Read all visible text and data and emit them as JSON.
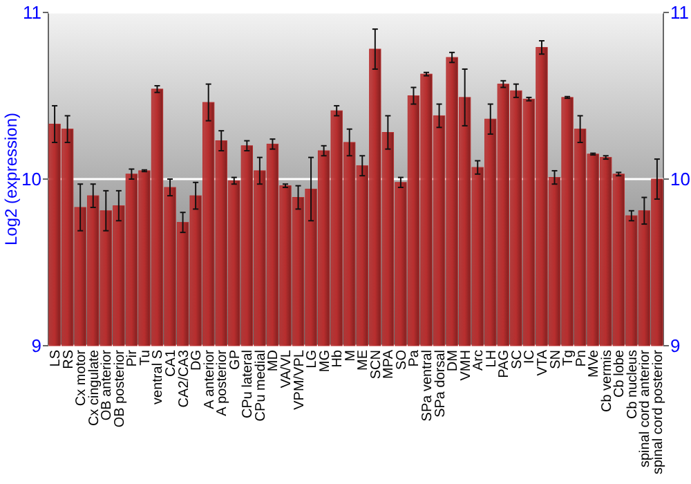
{
  "chart_data": {
    "type": "bar",
    "ylabel": "Log2 (expression)",
    "categories": [
      "LS",
      "RS",
      "Cx motor",
      "Cx cingulate",
      "OB anterior",
      "OB posterior",
      "Pir",
      "Tu",
      "ventral S",
      "CA1",
      "CA2/CA3",
      "DG",
      "A anterior",
      "A posterior",
      "GP",
      "CPu lateral",
      "CPu medial",
      "MD",
      "VA/VL",
      "VPM/VPL",
      "LG",
      "MG",
      "Hb",
      "M",
      "ME",
      "SCN",
      "MPA",
      "SO",
      "Pa",
      "SPa ventral",
      "SPa dorsal",
      "DM",
      "VMH",
      "Arc",
      "LH",
      "PAG",
      "SC",
      "IC",
      "VTA",
      "SN",
      "Tg",
      "Pn",
      "MVe",
      "Cb vermis",
      "Cb lobe",
      "Cb nucleus",
      "spinal cord anterior",
      "spinal cord posterior"
    ],
    "values": [
      10.33,
      10.3,
      9.83,
      9.9,
      9.81,
      9.84,
      10.03,
      10.05,
      10.54,
      9.95,
      9.74,
      9.9,
      10.46,
      10.23,
      9.99,
      10.2,
      10.05,
      10.21,
      9.96,
      9.89,
      9.94,
      10.17,
      10.41,
      10.22,
      10.08,
      10.78,
      10.28,
      9.98,
      10.5,
      10.63,
      10.38,
      10.73,
      10.49,
      10.07,
      10.36,
      10.57,
      10.53,
      10.48,
      10.79,
      10.01,
      10.49,
      10.3,
      10.15,
      10.13,
      10.03,
      9.78,
      9.81,
      10.0
    ],
    "errors": [
      0.11,
      0.08,
      0.14,
      0.07,
      0.12,
      0.09,
      0.03,
      0.005,
      0.02,
      0.05,
      0.06,
      0.08,
      0.11,
      0.06,
      0.02,
      0.03,
      0.08,
      0.03,
      0.01,
      0.07,
      0.19,
      0.03,
      0.03,
      0.08,
      0.06,
      0.12,
      0.1,
      0.03,
      0.05,
      0.01,
      0.07,
      0.03,
      0.17,
      0.04,
      0.09,
      0.02,
      0.04,
      0.01,
      0.04,
      0.04,
      0.005,
      0.08,
      0.005,
      0.01,
      0.01,
      0.03,
      0.08,
      0.12
    ],
    "color": "#b82e2e",
    "ylim": [
      9,
      11
    ],
    "yticks": [
      9,
      10,
      11
    ],
    "y2lim": [
      9,
      11
    ],
    "y2ticks": [
      9,
      10,
      11
    ],
    "grid": "y"
  }
}
